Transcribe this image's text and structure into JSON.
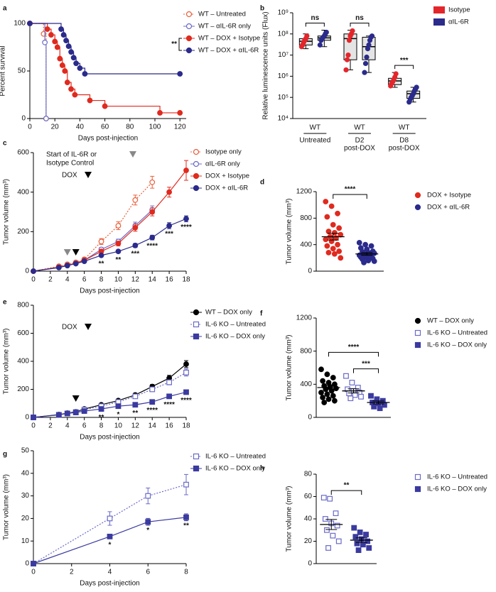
{
  "chart_data": [
    {
      "type": "survival",
      "label": "a",
      "ylabel": "Percent survival",
      "xlabel": "Days post-injection",
      "xlim": [
        0,
        125
      ],
      "xticks": [
        0,
        20,
        40,
        60,
        80,
        100,
        120
      ],
      "ylim": [
        0,
        100
      ],
      "yticks": [
        0,
        50,
        100
      ],
      "annotation": "**",
      "series": [
        {
          "name": "WT – Untreated",
          "color": "#e8603c",
          "marker": "circle",
          "filled": false,
          "dashed": true,
          "x": [
            0,
            11,
            13
          ],
          "values": [
            100,
            89,
            0
          ]
        },
        {
          "name": "WT – αIL-6R only",
          "color": "#6a6ac8",
          "marker": "circle",
          "filled": false,
          "dashed": false,
          "x": [
            0,
            12,
            13
          ],
          "values": [
            100,
            80,
            0
          ]
        },
        {
          "name": "WT – DOX + Isotype",
          "color": "#e02a1e",
          "marker": "circle",
          "filled": true,
          "dashed": false,
          "x": [
            0,
            14,
            17,
            20,
            22,
            24,
            26,
            28,
            30,
            33,
            36,
            48,
            60,
            104,
            120
          ],
          "values": [
            100,
            94,
            88,
            81,
            75,
            63,
            56,
            50,
            38,
            31,
            25,
            19,
            13,
            6,
            6
          ]
        },
        {
          "name": "WT – DOX + αIL-6R",
          "color": "#2b2b8c",
          "marker": "circle",
          "filled": true,
          "dashed": false,
          "x": [
            0,
            25,
            27,
            29,
            31,
            33,
            35,
            37,
            40,
            44,
            120
          ],
          "values": [
            100,
            94,
            88,
            82,
            76,
            70,
            64,
            58,
            53,
            47,
            47
          ]
        }
      ]
    },
    {
      "type": "box",
      "label": "b",
      "ylabel": "Relative luminescence units (Flux)",
      "log": true,
      "ylim": [
        10000,
        1000000000
      ],
      "yticks": [
        {
          "value": 10000,
          "label": "10⁴"
        },
        {
          "value": 100000,
          "label": "10⁵"
        },
        {
          "value": 1000000,
          "label": "10⁶"
        },
        {
          "value": 10000000,
          "label": "10⁷"
        },
        {
          "value": 100000000,
          "label": "10⁸"
        },
        {
          "value": 1000000000,
          "label": "10⁹"
        }
      ],
      "groups": [
        {
          "strain": "WT",
          "condition": [
            "Untreated"
          ]
        },
        {
          "strain": "WT",
          "condition": [
            "D2",
            "post-DOX"
          ]
        },
        {
          "strain": "WT",
          "condition": [
            "D8",
            "post-DOX"
          ]
        }
      ],
      "sig": [
        "ns",
        "ns",
        "***"
      ],
      "series": [
        {
          "name": "Isotype",
          "color": "#e3262b",
          "boxes": [
            {
              "min": 20000000,
              "q1": 30000000,
              "median": 45000000,
              "q3": 60000000,
              "max": 100000000,
              "points": [
                25000000,
                30000000,
                40000000,
                50000000,
                60000000,
                80000000
              ]
            },
            {
              "min": 2000000,
              "q1": 6000000,
              "median": 60000000,
              "q3": 100000000,
              "max": 150000000,
              "points": [
                2000000,
                6000000,
                10000000,
                50000000,
                80000000,
                100000000,
                140000000
              ]
            },
            {
              "min": 300000,
              "q1": 400000,
              "median": 600000,
              "q3": 800000,
              "max": 1500000,
              "points": [
                350000,
                450000,
                550000,
                700000,
                900000,
                1300000
              ]
            }
          ]
        },
        {
          "name": "αIL-6R",
          "color": "#2b2b8c",
          "boxes": [
            {
              "min": 25000000,
              "q1": 50000000,
              "median": 65000000,
              "q3": 80000000,
              "max": 150000000,
              "points": [
                30000000,
                50000000,
                60000000,
                70000000,
                80000000,
                100000000,
                120000000
              ]
            },
            {
              "min": 1500000,
              "q1": 6000000,
              "median": 25000000,
              "q3": 70000000,
              "max": 80000000,
              "points": [
                1500000,
                4000000,
                8000000,
                20000000,
                30000000,
                50000000,
                70000000,
                80000000
              ]
            },
            {
              "min": 60000,
              "q1": 90000,
              "median": 150000,
              "q3": 200000,
              "max": 300000,
              "points": [
                60000,
                80000,
                100000,
                120000,
                150000,
                200000,
                250000,
                300000
              ]
            }
          ]
        }
      ]
    },
    {
      "type": "line",
      "label": "c",
      "ylabel": "Tumor volume (mm³)",
      "xlabel": "Days post-injection",
      "xlim": [
        0,
        18
      ],
      "xticks": [
        0,
        2,
        4,
        6,
        8,
        10,
        12,
        14,
        16,
        18
      ],
      "ylim": [
        0,
        600
      ],
      "yticks": [
        0,
        200,
        400,
        600
      ],
      "start_note": [
        "Start of IL-6R or",
        "Isotype Control"
      ],
      "dox_note": "DOX",
      "x": [
        0,
        3,
        4,
        5,
        6,
        8,
        10,
        12,
        14,
        16,
        18
      ],
      "series": [
        {
          "name": "Isotype only",
          "color": "#e8603c",
          "marker": "circle",
          "filled": false,
          "dashed": true,
          "values": [
            0,
            25,
            35,
            45,
            60,
            150,
            230,
            360,
            450,
            null,
            null
          ],
          "errors": [
            0,
            5,
            6,
            6,
            8,
            15,
            20,
            25,
            30,
            null,
            null
          ]
        },
        {
          "name": "αIL-6R only",
          "color": "#6a6ac8",
          "marker": "circle",
          "filled": false,
          "dashed": false,
          "values": [
            0,
            20,
            30,
            40,
            55,
            110,
            150,
            230,
            310,
            null,
            null
          ],
          "errors": [
            0,
            4,
            5,
            5,
            6,
            10,
            12,
            18,
            20,
            null,
            null
          ]
        },
        {
          "name": "DOX + Isotype",
          "color": "#e02a1e",
          "marker": "circle",
          "filled": true,
          "dashed": false,
          "values": [
            0,
            20,
            30,
            40,
            55,
            100,
            140,
            220,
            300,
            400,
            510
          ],
          "errors": [
            0,
            4,
            5,
            5,
            6,
            10,
            12,
            18,
            20,
            25,
            50
          ]
        },
        {
          "name": "DOX + αIL-6R",
          "color": "#2b2b8c",
          "marker": "circle",
          "filled": true,
          "dashed": false,
          "values": [
            0,
            18,
            28,
            38,
            50,
            80,
            100,
            130,
            170,
            230,
            265
          ],
          "errors": [
            0,
            3,
            4,
            4,
            5,
            7,
            8,
            10,
            12,
            15,
            15
          ]
        }
      ],
      "sig": [
        {
          "x": 8,
          "label": "**"
        },
        {
          "x": 10,
          "label": "**"
        },
        {
          "x": 12,
          "label": "***"
        },
        {
          "x": 14,
          "label": "****"
        },
        {
          "x": 16,
          "label": "***"
        },
        {
          "x": 18,
          "label": "****"
        }
      ]
    },
    {
      "type": "dot",
      "label": "d",
      "ylabel": "Tumor volume (mm³)",
      "ylim": [
        0,
        1200
      ],
      "yticks": [
        0,
        400,
        800,
        1200
      ],
      "sig": [
        "****"
      ],
      "groups": [
        {
          "name": "DOX + Isotype",
          "color": "#e02a1e",
          "marker": "circle",
          "filled": true,
          "values": [
            1050,
            980,
            870,
            820,
            700,
            650,
            600,
            580,
            550,
            520,
            500,
            480,
            450,
            400,
            380,
            340,
            300,
            280,
            260,
            200
          ],
          "mean": 520,
          "sem": 50
        },
        {
          "name": "DOX + αIL-6R",
          "color": "#2b2b8c",
          "marker": "circle",
          "filled": true,
          "values": [
            430,
            400,
            380,
            350,
            330,
            300,
            290,
            280,
            270,
            260,
            250,
            240,
            230,
            220,
            210,
            200,
            190,
            180,
            160,
            150,
            130
          ],
          "mean": 260,
          "sem": 20
        }
      ]
    },
    {
      "type": "line",
      "label": "e",
      "ylabel": "Tumor volume (mm³)",
      "xlabel": "Days post-injection",
      "xlim": [
        0,
        18
      ],
      "xticks": [
        0,
        2,
        4,
        6,
        8,
        10,
        12,
        14,
        16,
        18
      ],
      "ylim": [
        0,
        800
      ],
      "yticks": [
        0,
        200,
        400,
        600,
        800
      ],
      "dox_note": "DOX",
      "x": [
        0,
        3,
        4,
        5,
        6,
        8,
        10,
        12,
        14,
        16,
        18
      ],
      "series": [
        {
          "name": "WT – DOX only",
          "color": "#000000",
          "marker": "circle",
          "filled": true,
          "dashed": false,
          "values": [
            0,
            20,
            30,
            40,
            60,
            90,
            120,
            160,
            220,
            280,
            380
          ],
          "errors": [
            0,
            3,
            4,
            5,
            6,
            8,
            10,
            12,
            15,
            20,
            25
          ]
        },
        {
          "name": "IL-6 KO – Untreated",
          "color": "#6a6ac8",
          "marker": "square",
          "filled": false,
          "dashed": true,
          "values": [
            0,
            18,
            28,
            38,
            55,
            80,
            110,
            150,
            200,
            250,
            320
          ],
          "errors": [
            0,
            3,
            4,
            5,
            6,
            8,
            10,
            12,
            15,
            18,
            25
          ]
        },
        {
          "name": "IL-6 KO – DOX only",
          "color": "#3a3aa0",
          "marker": "square",
          "filled": true,
          "dashed": false,
          "values": [
            0,
            18,
            28,
            35,
            45,
            60,
            80,
            90,
            110,
            150,
            180
          ],
          "errors": [
            0,
            3,
            4,
            4,
            5,
            6,
            8,
            8,
            10,
            12,
            12
          ]
        }
      ],
      "sig": [
        {
          "x": 8,
          "label": "**"
        },
        {
          "x": 10,
          "label": "*"
        },
        {
          "x": 12,
          "label": "**"
        },
        {
          "x": 14,
          "label": "****"
        },
        {
          "x": 16,
          "label": "****"
        },
        {
          "x": 18,
          "label": "****"
        }
      ]
    },
    {
      "type": "dot",
      "label": "f",
      "ylabel": "Tumor volume (mm³)",
      "ylim": [
        0,
        1200
      ],
      "yticks": [
        0,
        400,
        800,
        1200
      ],
      "sig": [
        "****",
        "***"
      ],
      "groups": [
        {
          "name": "WT – DOX only",
          "color": "#000000",
          "marker": "circle",
          "filled": true,
          "values": [
            580,
            520,
            480,
            440,
            420,
            400,
            380,
            370,
            350,
            340,
            320,
            300,
            280,
            260,
            240,
            220,
            200,
            180
          ],
          "mean": 360,
          "sem": 25
        },
        {
          "name": "IL-6 KO – Untreated",
          "color": "#6a6ac8",
          "marker": "square",
          "filled": false,
          "values": [
            500,
            420,
            360,
            340,
            320,
            300,
            290,
            270,
            250,
            230
          ],
          "mean": 320,
          "sem": 25
        },
        {
          "name": "IL-6 KO – DOX only",
          "color": "#3a3aa0",
          "marker": "square",
          "filled": true,
          "values": [
            260,
            220,
            200,
            180,
            170,
            150,
            130,
            110
          ],
          "mean": 180,
          "sem": 18
        }
      ]
    },
    {
      "type": "line",
      "label": "g",
      "ylabel": "Tumor volume (mm³)",
      "xlabel": "Days post-injection",
      "xlim": [
        0,
        8
      ],
      "xticks": [
        0,
        2,
        4,
        6,
        8
      ],
      "ylim": [
        0,
        50
      ],
      "yticks": [
        0,
        10,
        20,
        30,
        40,
        50
      ],
      "x": [
        0,
        4,
        6,
        8
      ],
      "series": [
        {
          "name": "IL-6 KO – Untreated",
          "color": "#6a6ac8",
          "marker": "square",
          "filled": false,
          "dashed": true,
          "values": [
            0,
            20,
            30,
            35
          ],
          "errors": [
            0,
            3,
            3.5,
            4.5
          ]
        },
        {
          "name": "IL-6 KO – DOX only",
          "color": "#3a3aa0",
          "marker": "square",
          "filled": true,
          "dashed": false,
          "values": [
            0,
            12,
            18.5,
            20.5
          ],
          "errors": [
            0,
            1,
            1.5,
            1.5
          ]
        }
      ],
      "sig": [
        {
          "x": 4,
          "label": "*"
        },
        {
          "x": 6,
          "label": "*"
        },
        {
          "x": 8,
          "label": "**"
        }
      ]
    },
    {
      "type": "dot",
      "label": "h",
      "ylabel": "Tumor volume (mm³)",
      "ylim": [
        0,
        80
      ],
      "yticks": [
        0,
        20,
        40,
        60,
        80
      ],
      "sig": [
        "**"
      ],
      "groups": [
        {
          "name": "IL-6 KO – Untreated",
          "color": "#6a6ac8",
          "marker": "square",
          "filled": false,
          "values": [
            59,
            58,
            45,
            40,
            36,
            34,
            30,
            25,
            20,
            14
          ],
          "mean": 35,
          "sem": 4.5
        },
        {
          "name": "IL-6 KO – DOX only",
          "color": "#3a3aa0",
          "marker": "square",
          "filled": true,
          "values": [
            32,
            28,
            26,
            24,
            22,
            20,
            18,
            17,
            14,
            12
          ],
          "mean": 21,
          "sem": 2
        }
      ]
    }
  ]
}
